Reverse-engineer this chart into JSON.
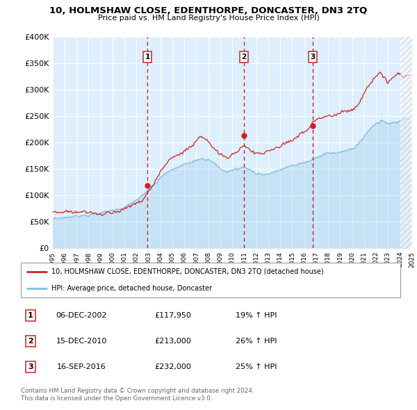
{
  "title": "10, HOLMSHAW CLOSE, EDENTHORPE, DONCASTER, DN3 2TQ",
  "subtitle": "Price paid vs. HM Land Registry's House Price Index (HPI)",
  "legend_line1": "10, HOLMSHAW CLOSE, EDENTHORPE, DONCASTER, DN3 2TQ (detached house)",
  "legend_line2": "HPI: Average price, detached house, Doncaster",
  "hpi_color": "#7fbfdf",
  "price_color": "#cc2222",
  "vline_color": "#cc2222",
  "bg_color": "#ddeeff",
  "transactions": [
    {
      "label": "1",
      "date_num": 2002.92,
      "price": 117950,
      "date_str": "06-DEC-2002",
      "pct": "19%"
    },
    {
      "label": "2",
      "date_num": 2010.96,
      "price": 213000,
      "date_str": "15-DEC-2010",
      "pct": "26%"
    },
    {
      "label": "3",
      "date_num": 2016.71,
      "price": 232000,
      "date_str": "16-SEP-2016",
      "pct": "25%"
    }
  ],
  "xmin": 1995,
  "xmax": 2025,
  "ymin": 0,
  "ymax": 400000,
  "yticks": [
    0,
    50000,
    100000,
    150000,
    200000,
    250000,
    300000,
    350000,
    400000
  ],
  "ytick_labels": [
    "£0",
    "£50K",
    "£100K",
    "£150K",
    "£200K",
    "£250K",
    "£300K",
    "£350K",
    "£400K"
  ],
  "footer1": "Contains HM Land Registry data © Crown copyright and database right 2024.",
  "footer2": "This data is licensed under the Open Government Licence v3.0."
}
